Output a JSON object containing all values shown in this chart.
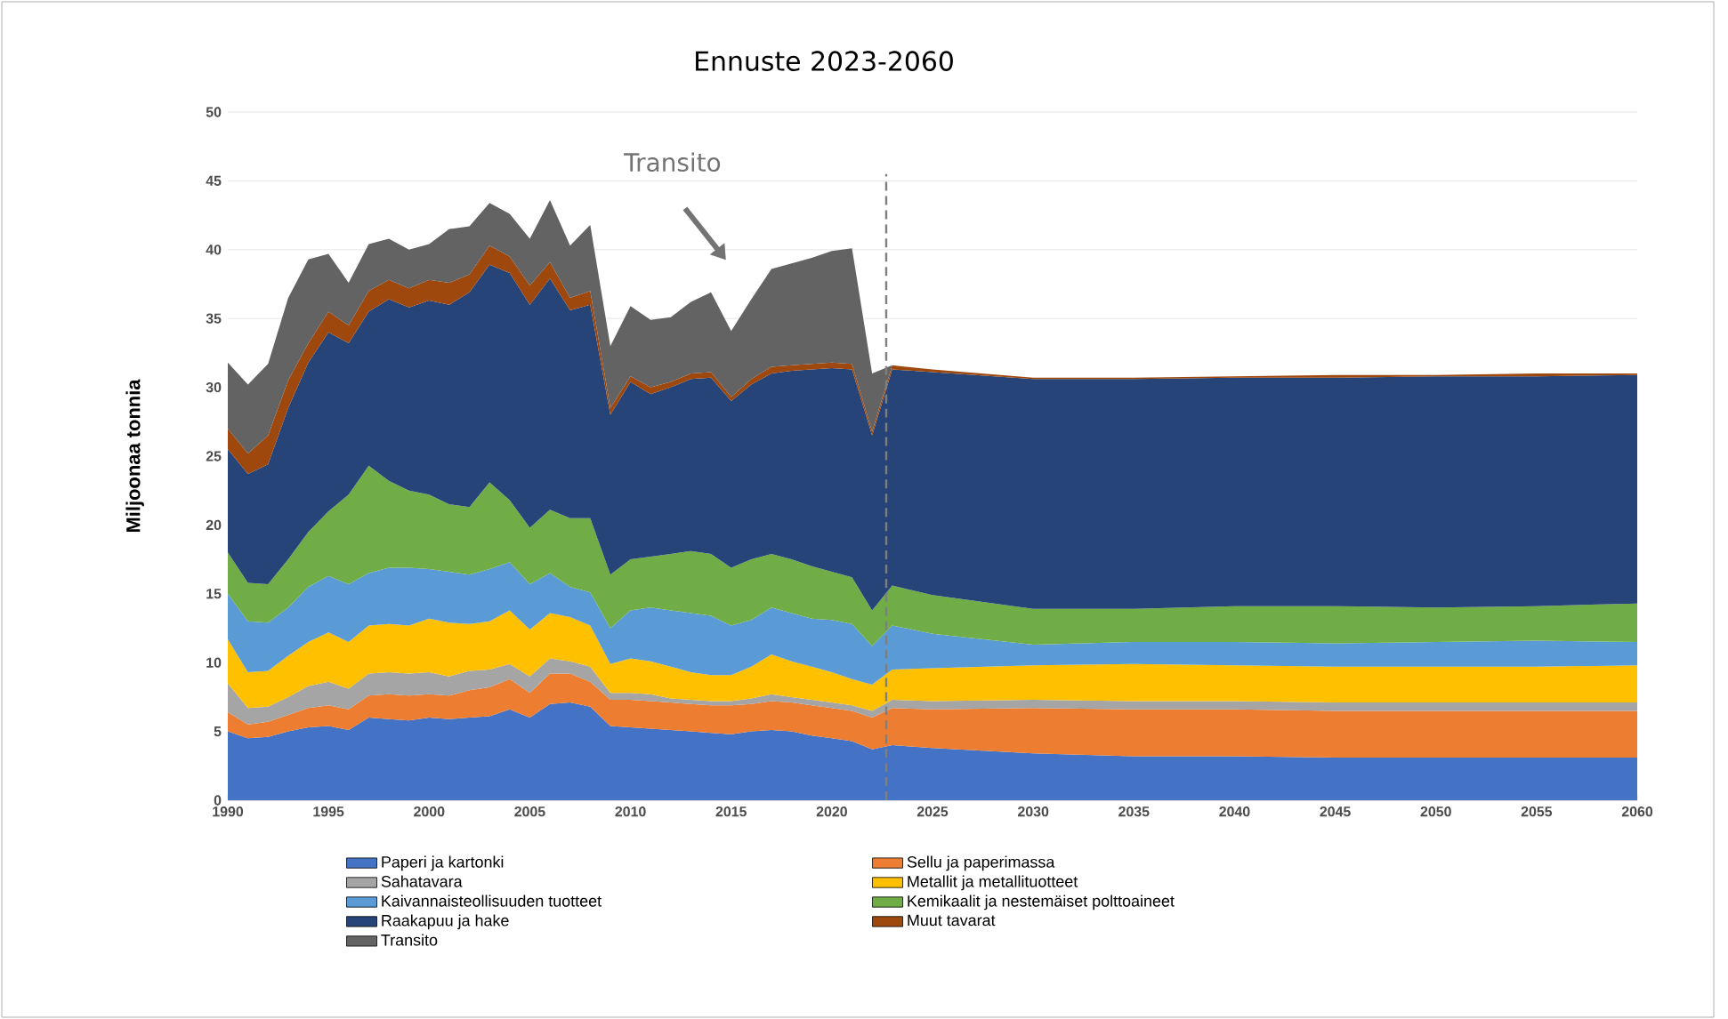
{
  "chart_data": {
    "type": "area",
    "title": "Ennuste 2023-2060",
    "ylabel": "Miljoonaa tonnia",
    "stacked": true,
    "legend": "bottom",
    "grid": "y",
    "x": [
      1990,
      1991,
      1992,
      1993,
      1994,
      1995,
      1996,
      1997,
      1998,
      1999,
      2000,
      2001,
      2002,
      2003,
      2004,
      2005,
      2006,
      2007,
      2008,
      2009,
      2010,
      2011,
      2012,
      2013,
      2014,
      2015,
      2016,
      2017,
      2018,
      2019,
      2020,
      2021,
      2022,
      2023,
      2025,
      2030,
      2035,
      2040,
      2045,
      2050,
      2055,
      2060
    ],
    "xlim": [
      1990,
      2060
    ],
    "xticks": [
      1990,
      1995,
      2000,
      2005,
      2010,
      2015,
      2020,
      2025,
      2030,
      2035,
      2040,
      2045,
      2050,
      2055,
      2060
    ],
    "ylim": [
      0,
      50
    ],
    "yticks": [
      0,
      5,
      10,
      15,
      20,
      25,
      30,
      35,
      40,
      45,
      50
    ],
    "series": [
      {
        "name": "Paperi ja kartonki",
        "color": "#4472c4",
        "values": [
          5.0,
          4.5,
          4.6,
          5.0,
          5.3,
          5.4,
          5.1,
          6.0,
          5.9,
          5.8,
          6.0,
          5.9,
          6.0,
          6.1,
          6.6,
          6.0,
          7.0,
          7.1,
          6.8,
          5.4,
          5.3,
          5.2,
          5.1,
          5.0,
          4.9,
          4.8,
          5.0,
          5.1,
          5.0,
          4.7,
          4.5,
          4.3,
          3.7,
          4.0,
          3.8,
          3.4,
          3.2,
          3.2,
          3.1,
          3.1,
          3.1,
          3.1
        ]
      },
      {
        "name": "Sellu ja paperimassa",
        "color": "#ed7d31",
        "values": [
          1.4,
          1.0,
          1.1,
          1.2,
          1.4,
          1.5,
          1.5,
          1.6,
          1.8,
          1.8,
          1.7,
          1.7,
          2.0,
          2.1,
          2.2,
          1.8,
          2.2,
          2.1,
          1.8,
          1.9,
          2.0,
          2.0,
          2.0,
          2.0,
          2.0,
          2.1,
          2.0,
          2.1,
          2.1,
          2.2,
          2.2,
          2.2,
          2.3,
          2.7,
          2.8,
          3.3,
          3.4,
          3.4,
          3.4,
          3.4,
          3.4,
          3.4
        ]
      },
      {
        "name": "Sahatavara",
        "color": "#a5a5a5",
        "values": [
          2.1,
          1.2,
          1.1,
          1.3,
          1.6,
          1.7,
          1.5,
          1.6,
          1.6,
          1.6,
          1.6,
          1.4,
          1.4,
          1.3,
          1.1,
          1.2,
          1.1,
          0.9,
          1.1,
          0.5,
          0.5,
          0.5,
          0.3,
          0.3,
          0.3,
          0.3,
          0.4,
          0.5,
          0.4,
          0.4,
          0.4,
          0.4,
          0.5,
          0.6,
          0.6,
          0.6,
          0.6,
          0.6,
          0.6,
          0.6,
          0.6,
          0.6
        ]
      },
      {
        "name": "Metallit ja metallituotteet",
        "color": "#ffc000",
        "values": [
          3.2,
          2.6,
          2.6,
          3.0,
          3.2,
          3.6,
          3.4,
          3.5,
          3.5,
          3.5,
          3.9,
          3.9,
          3.4,
          3.5,
          3.9,
          3.4,
          3.3,
          3.2,
          3.0,
          2.1,
          2.5,
          2.4,
          2.3,
          2.0,
          1.9,
          1.9,
          2.3,
          2.9,
          2.6,
          2.4,
          2.2,
          1.9,
          1.9,
          2.2,
          2.4,
          2.5,
          2.7,
          2.6,
          2.6,
          2.6,
          2.6,
          2.7
        ]
      },
      {
        "name": "Kaivannaisteollisuuden tuotteet",
        "color": "#5b9bd5",
        "values": [
          3.3,
          3.7,
          3.5,
          3.5,
          4.0,
          4.1,
          4.2,
          3.8,
          4.1,
          4.2,
          3.6,
          3.7,
          3.6,
          3.8,
          3.5,
          3.3,
          2.9,
          2.2,
          2.4,
          2.6,
          3.5,
          3.9,
          4.1,
          4.3,
          4.3,
          3.6,
          3.4,
          3.4,
          3.5,
          3.5,
          3.8,
          4.0,
          2.8,
          3.2,
          2.5,
          1.5,
          1.6,
          1.7,
          1.7,
          1.8,
          1.9,
          1.7
        ]
      },
      {
        "name": "Kemikaalit ja nestemäiset polttoaineet",
        "color": "#70ad47",
        "values": [
          3.0,
          2.8,
          2.8,
          3.5,
          4.0,
          4.7,
          6.5,
          7.8,
          6.3,
          5.6,
          5.4,
          4.9,
          4.9,
          6.3,
          4.5,
          4.1,
          4.6,
          5.0,
          5.4,
          3.9,
          3.7,
          3.7,
          4.1,
          4.5,
          4.5,
          4.2,
          4.4,
          3.9,
          3.9,
          3.8,
          3.5,
          3.4,
          2.6,
          2.9,
          2.8,
          2.6,
          2.4,
          2.6,
          2.7,
          2.5,
          2.5,
          2.8
        ]
      },
      {
        "name": "Raakapuu ja hake",
        "color": "#264478",
        "values": [
          7.5,
          7.9,
          8.7,
          11.0,
          12.3,
          13.0,
          11.0,
          11.2,
          13.2,
          13.3,
          14.1,
          14.5,
          15.6,
          15.8,
          16.5,
          16.2,
          16.8,
          15.1,
          15.5,
          11.6,
          12.9,
          11.8,
          12.1,
          12.5,
          12.8,
          12.1,
          12.7,
          13.1,
          13.7,
          14.3,
          14.8,
          15.1,
          12.7,
          15.7,
          16.2,
          16.7,
          16.7,
          16.6,
          16.6,
          16.8,
          16.7,
          16.6
        ]
      },
      {
        "name": "Muut tavarat",
        "color": "#9e480e",
        "values": [
          1.5,
          1.5,
          2.1,
          2.0,
          1.4,
          1.5,
          1.3,
          1.5,
          1.4,
          1.4,
          1.5,
          1.6,
          1.3,
          1.4,
          1.2,
          1.4,
          1.2,
          0.9,
          1.0,
          0.5,
          0.4,
          0.5,
          0.4,
          0.4,
          0.4,
          0.3,
          0.4,
          0.5,
          0.4,
          0.4,
          0.4,
          0.4,
          0.3,
          0.3,
          0.2,
          0.1,
          0.1,
          0.1,
          0.2,
          0.1,
          0.2,
          0.1
        ]
      },
      {
        "name": "Transito",
        "color": "#636363",
        "values": [
          4.8,
          5.0,
          5.2,
          6.0,
          6.1,
          4.2,
          3.1,
          3.4,
          3.0,
          2.8,
          2.6,
          3.9,
          3.5,
          3.1,
          3.1,
          3.4,
          4.5,
          3.8,
          4.8,
          4.5,
          5.1,
          4.9,
          4.7,
          5.2,
          5.8,
          4.8,
          5.8,
          7.1,
          7.4,
          7.7,
          8.1,
          8.4,
          4.2,
          0,
          0,
          0,
          0,
          0,
          0,
          0,
          0,
          0
        ]
      }
    ],
    "ref_lines": [
      {
        "axis": "x",
        "value": 2022.7,
        "color": "#7f7f7f",
        "line_style": "dashed"
      }
    ],
    "annotations": [
      "Transito"
    ]
  }
}
